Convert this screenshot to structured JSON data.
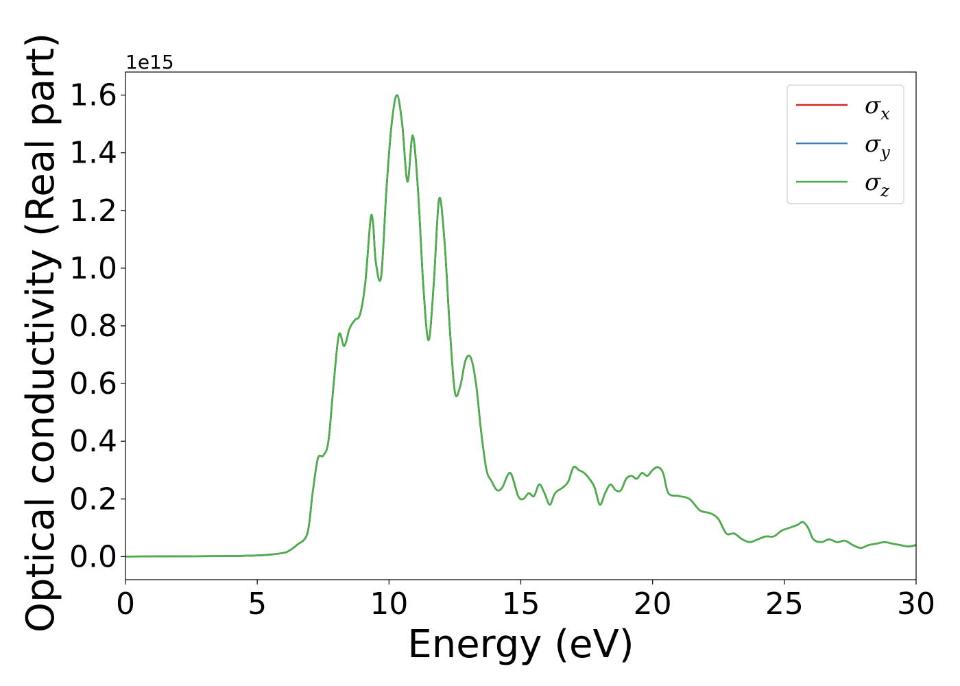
{
  "chart_data": {
    "type": "line",
    "xlabel": "Energy (eV)",
    "ylabel": "Optical conductivity (Real part)",
    "y_offset_label": "1e15",
    "xlim": [
      0,
      30
    ],
    "ylim": [
      -0.08,
      1.68
    ],
    "x_ticks": [
      0,
      5,
      10,
      15,
      20,
      25,
      30
    ],
    "x_tick_labels": [
      "0",
      "5",
      "10",
      "15",
      "20",
      "25",
      "30"
    ],
    "y_ticks": [
      0.0,
      0.2,
      0.4,
      0.6,
      0.8,
      1.0,
      1.2,
      1.4,
      1.6
    ],
    "y_tick_labels": [
      "0.0",
      "0.2",
      "0.4",
      "0.6",
      "0.8",
      "1.0",
      "1.2",
      "1.4",
      "1.6"
    ],
    "grid": false,
    "legend_position": "top-right",
    "legend": [
      {
        "base": "σ",
        "sub": "x",
        "color": "#d62728"
      },
      {
        "base": "σ",
        "sub": "y",
        "color": "#377eb8"
      },
      {
        "base": "σ",
        "sub": "z",
        "color": "#4daf4a"
      }
    ],
    "series": [
      {
        "name": "σx",
        "color": "#d62728",
        "x": [
          0,
          2,
          4,
          5,
          5.5,
          6,
          6.2,
          6.5,
          6.9,
          7.1,
          7.3,
          7.5,
          7.7,
          7.9,
          8.1,
          8.3,
          8.5,
          8.7,
          8.9,
          9.1,
          9.3,
          9.4,
          9.5,
          9.7,
          9.9,
          10.1,
          10.3,
          10.5,
          10.7,
          10.9,
          11.1,
          11.3,
          11.5,
          11.7,
          11.9,
          12.1,
          12.3,
          12.5,
          12.7,
          12.9,
          13.1,
          13.3,
          13.5,
          13.7,
          13.9,
          14.1,
          14.3,
          14.6,
          14.9,
          15.1,
          15.3,
          15.5,
          15.7,
          15.9,
          16.1,
          16.3,
          16.6,
          16.8,
          17.0,
          17.2,
          17.4,
          17.6,
          17.8,
          18.0,
          18.2,
          18.4,
          18.6,
          18.8,
          19.0,
          19.2,
          19.4,
          19.6,
          19.8,
          20.0,
          20.2,
          20.4,
          20.6,
          21.0,
          21.4,
          21.8,
          22.2,
          22.5,
          22.8,
          23.1,
          23.4,
          23.7,
          24.0,
          24.3,
          24.6,
          24.9,
          25.2,
          25.5,
          25.7,
          25.9,
          26.1,
          26.4,
          26.7,
          27.0,
          27.3,
          27.6,
          27.9,
          28.2,
          28.5,
          28.8,
          29.1,
          29.4,
          29.7,
          30.0
        ],
        "values": [
          0.0,
          0.001,
          0.002,
          0.004,
          0.007,
          0.013,
          0.02,
          0.04,
          0.08,
          0.22,
          0.34,
          0.35,
          0.4,
          0.6,
          0.77,
          0.73,
          0.79,
          0.82,
          0.84,
          0.95,
          1.17,
          1.15,
          1.02,
          0.97,
          1.27,
          1.5,
          1.6,
          1.5,
          1.3,
          1.46,
          1.27,
          0.94,
          0.75,
          0.95,
          1.24,
          1.1,
          0.8,
          0.57,
          0.59,
          0.68,
          0.69,
          0.6,
          0.43,
          0.3,
          0.26,
          0.23,
          0.24,
          0.29,
          0.21,
          0.2,
          0.22,
          0.21,
          0.25,
          0.22,
          0.18,
          0.22,
          0.24,
          0.26,
          0.31,
          0.3,
          0.29,
          0.27,
          0.24,
          0.18,
          0.22,
          0.25,
          0.23,
          0.23,
          0.27,
          0.28,
          0.27,
          0.29,
          0.28,
          0.3,
          0.31,
          0.29,
          0.22,
          0.21,
          0.2,
          0.16,
          0.15,
          0.13,
          0.08,
          0.08,
          0.06,
          0.05,
          0.06,
          0.07,
          0.07,
          0.09,
          0.1,
          0.11,
          0.12,
          0.1,
          0.06,
          0.05,
          0.06,
          0.05,
          0.055,
          0.04,
          0.03,
          0.04,
          0.045,
          0.05,
          0.045,
          0.04,
          0.035,
          0.04
        ]
      },
      {
        "name": "σy",
        "color": "#377eb8",
        "x": [
          0,
          2,
          4,
          5,
          5.5,
          6,
          6.2,
          6.5,
          6.9,
          7.1,
          7.3,
          7.5,
          7.7,
          7.9,
          8.1,
          8.3,
          8.5,
          8.7,
          8.9,
          9.1,
          9.3,
          9.4,
          9.5,
          9.7,
          9.9,
          10.1,
          10.3,
          10.5,
          10.7,
          10.9,
          11.1,
          11.3,
          11.5,
          11.7,
          11.9,
          12.1,
          12.3,
          12.5,
          12.7,
          12.9,
          13.1,
          13.3,
          13.5,
          13.7,
          13.9,
          14.1,
          14.3,
          14.6,
          14.9,
          15.1,
          15.3,
          15.5,
          15.7,
          15.9,
          16.1,
          16.3,
          16.6,
          16.8,
          17.0,
          17.2,
          17.4,
          17.6,
          17.8,
          18.0,
          18.2,
          18.4,
          18.6,
          18.8,
          19.0,
          19.2,
          19.4,
          19.6,
          19.8,
          20.0,
          20.2,
          20.4,
          20.6,
          21.0,
          21.4,
          21.8,
          22.2,
          22.5,
          22.8,
          23.1,
          23.4,
          23.7,
          24.0,
          24.3,
          24.6,
          24.9,
          25.2,
          25.5,
          25.7,
          25.9,
          26.1,
          26.4,
          26.7,
          27.0,
          27.3,
          27.6,
          27.9,
          28.2,
          28.5,
          28.8,
          29.1,
          29.4,
          29.7,
          30.0
        ],
        "values": [
          0.0,
          0.001,
          0.002,
          0.004,
          0.007,
          0.013,
          0.02,
          0.04,
          0.08,
          0.22,
          0.34,
          0.35,
          0.4,
          0.6,
          0.77,
          0.73,
          0.79,
          0.82,
          0.84,
          0.95,
          1.17,
          1.15,
          1.02,
          0.97,
          1.27,
          1.5,
          1.6,
          1.5,
          1.3,
          1.46,
          1.27,
          0.94,
          0.75,
          0.95,
          1.24,
          1.1,
          0.8,
          0.57,
          0.59,
          0.68,
          0.69,
          0.6,
          0.43,
          0.3,
          0.26,
          0.23,
          0.24,
          0.29,
          0.21,
          0.2,
          0.22,
          0.21,
          0.25,
          0.22,
          0.18,
          0.22,
          0.24,
          0.26,
          0.31,
          0.3,
          0.29,
          0.27,
          0.24,
          0.18,
          0.22,
          0.25,
          0.23,
          0.23,
          0.27,
          0.28,
          0.27,
          0.29,
          0.28,
          0.3,
          0.31,
          0.29,
          0.22,
          0.21,
          0.2,
          0.16,
          0.15,
          0.13,
          0.08,
          0.08,
          0.06,
          0.05,
          0.06,
          0.07,
          0.07,
          0.09,
          0.1,
          0.11,
          0.12,
          0.1,
          0.06,
          0.05,
          0.06,
          0.05,
          0.055,
          0.04,
          0.03,
          0.04,
          0.045,
          0.05,
          0.045,
          0.04,
          0.035,
          0.04
        ]
      },
      {
        "name": "σz",
        "color": "#4daf4a",
        "x": [
          0,
          2,
          4,
          5,
          5.5,
          6,
          6.2,
          6.5,
          6.9,
          7.1,
          7.3,
          7.5,
          7.7,
          7.9,
          8.1,
          8.3,
          8.5,
          8.7,
          8.9,
          9.1,
          9.3,
          9.4,
          9.5,
          9.7,
          9.9,
          10.1,
          10.3,
          10.5,
          10.7,
          10.9,
          11.1,
          11.3,
          11.5,
          11.7,
          11.9,
          12.1,
          12.3,
          12.5,
          12.7,
          12.9,
          13.1,
          13.3,
          13.5,
          13.7,
          13.9,
          14.1,
          14.3,
          14.6,
          14.9,
          15.1,
          15.3,
          15.5,
          15.7,
          15.9,
          16.1,
          16.3,
          16.6,
          16.8,
          17.0,
          17.2,
          17.4,
          17.6,
          17.8,
          18.0,
          18.2,
          18.4,
          18.6,
          18.8,
          19.0,
          19.2,
          19.4,
          19.6,
          19.8,
          20.0,
          20.2,
          20.4,
          20.6,
          21.0,
          21.4,
          21.8,
          22.2,
          22.5,
          22.8,
          23.1,
          23.4,
          23.7,
          24.0,
          24.3,
          24.6,
          24.9,
          25.2,
          25.5,
          25.7,
          25.9,
          26.1,
          26.4,
          26.7,
          27.0,
          27.3,
          27.6,
          27.9,
          28.2,
          28.5,
          28.8,
          29.1,
          29.4,
          29.7,
          30.0
        ],
        "values": [
          0.0,
          0.001,
          0.002,
          0.004,
          0.007,
          0.013,
          0.02,
          0.04,
          0.08,
          0.22,
          0.34,
          0.35,
          0.4,
          0.6,
          0.77,
          0.73,
          0.79,
          0.82,
          0.84,
          0.95,
          1.17,
          1.15,
          1.02,
          0.97,
          1.27,
          1.5,
          1.6,
          1.5,
          1.3,
          1.46,
          1.27,
          0.94,
          0.75,
          0.95,
          1.24,
          1.1,
          0.8,
          0.57,
          0.59,
          0.68,
          0.69,
          0.6,
          0.43,
          0.3,
          0.26,
          0.23,
          0.24,
          0.29,
          0.21,
          0.2,
          0.22,
          0.21,
          0.25,
          0.22,
          0.18,
          0.22,
          0.24,
          0.26,
          0.31,
          0.3,
          0.29,
          0.27,
          0.24,
          0.18,
          0.22,
          0.25,
          0.23,
          0.23,
          0.27,
          0.28,
          0.27,
          0.29,
          0.28,
          0.3,
          0.31,
          0.29,
          0.22,
          0.21,
          0.2,
          0.16,
          0.15,
          0.13,
          0.08,
          0.08,
          0.06,
          0.05,
          0.06,
          0.07,
          0.07,
          0.09,
          0.1,
          0.11,
          0.12,
          0.1,
          0.06,
          0.05,
          0.06,
          0.05,
          0.055,
          0.04,
          0.03,
          0.04,
          0.045,
          0.05,
          0.045,
          0.04,
          0.035,
          0.04
        ]
      }
    ]
  }
}
